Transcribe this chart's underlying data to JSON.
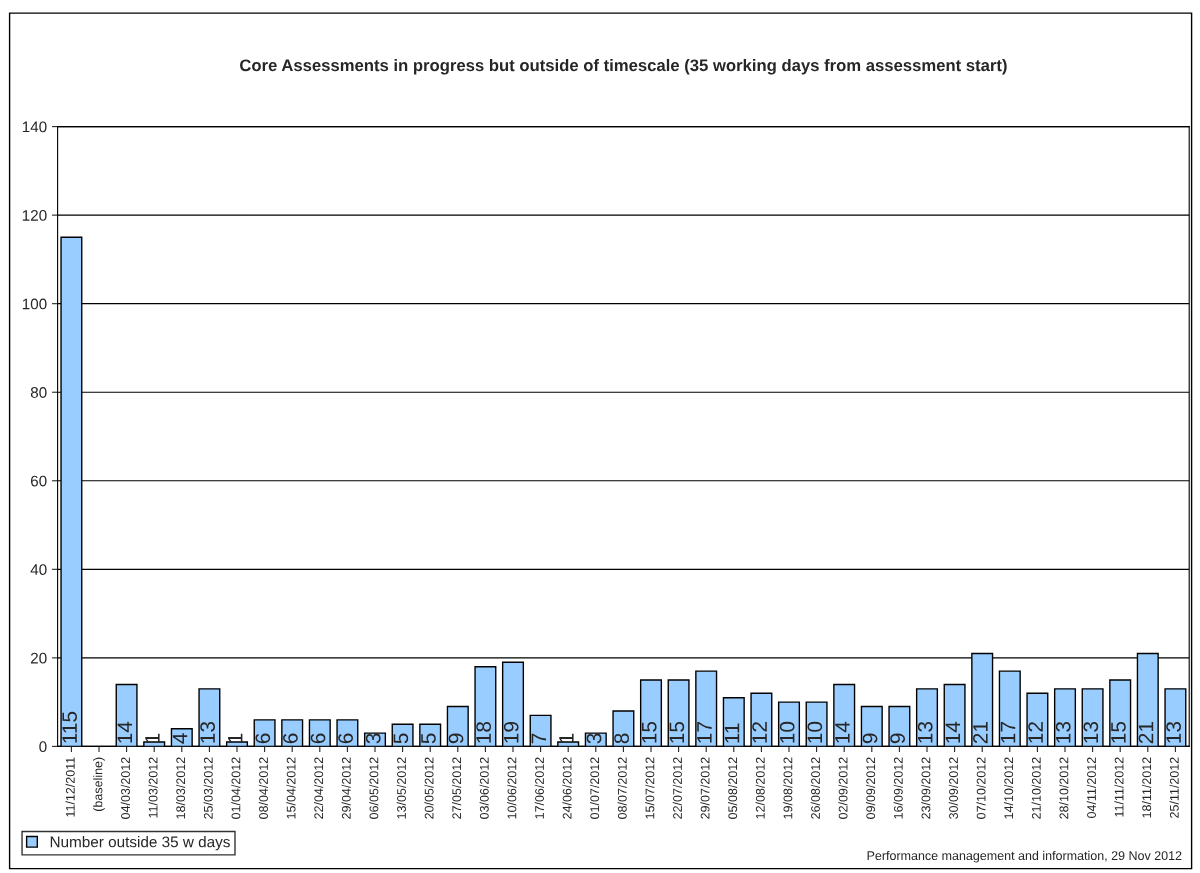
{
  "chart_data": {
    "type": "bar",
    "title": "Core Assessments in progress but outside of timescale (35 working days from assessment start)",
    "categories": [
      "11/12/2011",
      "(baseline)",
      "04/03/2012",
      "11/03/2012",
      "18/03/2012",
      "25/03/2012",
      "01/04/2012",
      "08/04/2012",
      "15/04/2012",
      "22/04/2012",
      "29/04/2012",
      "06/05/2012",
      "13/05/2012",
      "20/05/2012",
      "27/05/2012",
      "03/06/2012",
      "10/06/2012",
      "17/06/2012",
      "24/06/2012",
      "01/07/2012",
      "08/07/2012",
      "15/07/2012",
      "22/07/2012",
      "29/07/2012",
      "05/08/2012",
      "12/08/2012",
      "19/08/2012",
      "26/08/2012",
      "02/09/2012",
      "09/09/2012",
      "16/09/2012",
      "23/09/2012",
      "30/09/2012",
      "07/10/2012",
      "14/10/2012",
      "21/10/2012",
      "28/10/2012",
      "04/11/2012",
      "11/11/2012",
      "18/11/2012",
      "25/11/2012"
    ],
    "series": [
      {
        "name": "Number outside 35 w days",
        "color": "#99ccff",
        "values": [
          115,
          null,
          14,
          1,
          4,
          13,
          1,
          6,
          6,
          6,
          6,
          3,
          5,
          5,
          9,
          18,
          19,
          7,
          1,
          3,
          8,
          15,
          15,
          17,
          11,
          12,
          10,
          10,
          14,
          9,
          9,
          13,
          14,
          21,
          17,
          12,
          13,
          13,
          15,
          21,
          13
        ]
      }
    ],
    "ylim": [
      0,
      140
    ],
    "yticks": [
      0,
      20,
      40,
      60,
      80,
      100,
      120,
      140
    ],
    "grid": "y",
    "legend": "bottom left",
    "data_labels": true,
    "annotations": [
      "Performance management and information, 29 Nov 2012"
    ]
  }
}
